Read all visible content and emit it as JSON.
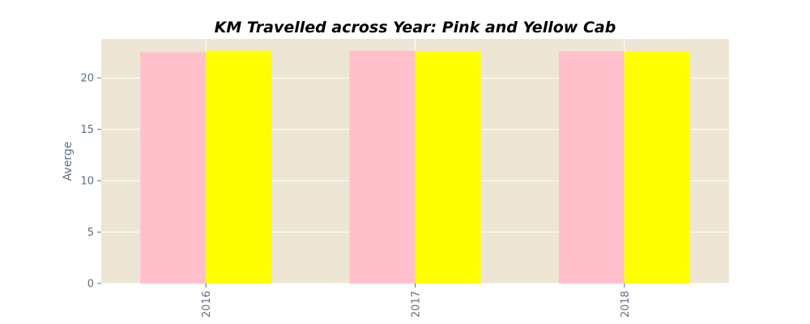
{
  "chart_data": {
    "type": "bar",
    "title": "KM Travelled across Year: Pink and Yellow Cab",
    "xlabel": "",
    "ylabel": "Averge",
    "categories": [
      "2016",
      "2017",
      "2018"
    ],
    "series": [
      {
        "values": [
          22.5,
          22.65,
          22.6
        ],
        "color": "#ffc0cb"
      },
      {
        "values": [
          22.65,
          22.55,
          22.55
        ],
        "color": "#ffff00"
      }
    ],
    "ylim": [
      0,
      23.8
    ],
    "yticks": [
      0,
      5,
      10,
      15,
      20
    ],
    "grid": true,
    "background_color": "#eee6d4",
    "grid_color": "#ffffff",
    "legend": "none"
  }
}
